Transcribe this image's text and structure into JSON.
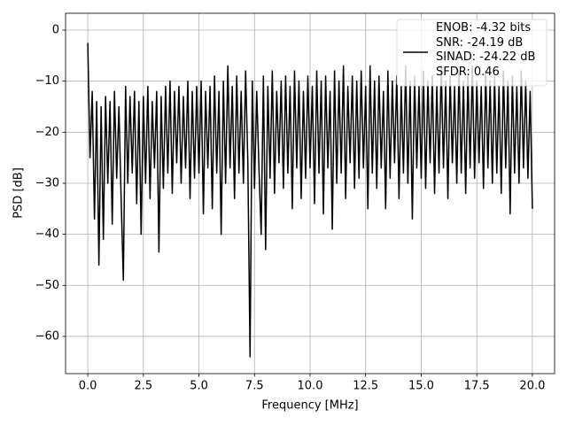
{
  "chart_data": {
    "type": "line",
    "xlabel": "Frequency [MHz]",
    "ylabel": "PSD [dB]",
    "xlim": [
      -1.0,
      21.0
    ],
    "ylim": [
      -67.3,
      3.3
    ],
    "xticks": [
      {
        "value": 0,
        "label": "0.0"
      },
      2.5,
      {
        "value": 5,
        "label": "5.0"
      },
      7.5,
      {
        "value": 10,
        "label": "10.0"
      },
      12.5,
      {
        "value": 15,
        "label": "15.0"
      },
      17.5,
      {
        "value": 20,
        "label": "20.0"
      }
    ],
    "yticks": [
      {
        "value": -60,
        "label": "−60"
      },
      {
        "value": -50,
        "label": "−50"
      },
      {
        "value": -40,
        "label": "−40"
      },
      {
        "value": -30,
        "label": "−30"
      },
      {
        "value": -20,
        "label": "−20"
      },
      {
        "value": -10,
        "label": "−10"
      },
      0
    ],
    "grid": true,
    "legend": "upper right",
    "x": [
      0.0,
      0.1,
      0.2,
      0.3,
      0.4,
      0.5,
      0.6,
      0.7,
      0.8,
      0.9,
      1.0,
      1.1,
      1.2,
      1.3,
      1.4,
      1.5,
      1.6,
      1.7,
      1.8,
      1.9,
      2.0,
      2.1,
      2.2,
      2.3,
      2.4,
      2.5,
      2.6,
      2.7,
      2.8,
      2.9,
      3.0,
      3.1,
      3.2,
      3.3,
      3.4,
      3.5,
      3.6,
      3.7,
      3.8,
      3.9,
      4.0,
      4.1,
      4.2,
      4.3,
      4.4,
      4.5,
      4.6,
      4.7,
      4.8,
      4.9,
      5.0,
      5.1,
      5.2,
      5.3,
      5.4,
      5.5,
      5.6,
      5.7,
      5.8,
      5.9,
      6.0,
      6.1,
      6.2,
      6.3,
      6.4,
      6.5,
      6.6,
      6.7,
      6.8,
      6.9,
      7.0,
      7.1,
      7.2,
      7.3,
      7.4,
      7.5,
      7.6,
      7.7,
      7.8,
      7.9,
      8.0,
      8.1,
      8.2,
      8.3,
      8.4,
      8.5,
      8.6,
      8.7,
      8.8,
      8.9,
      9.0,
      9.1,
      9.2,
      9.3,
      9.4,
      9.5,
      9.6,
      9.7,
      9.8,
      9.9,
      10.0,
      10.1,
      10.2,
      10.3,
      10.4,
      10.5,
      10.6,
      10.7,
      10.8,
      10.9,
      11.0,
      11.1,
      11.2,
      11.3,
      11.4,
      11.5,
      11.6,
      11.7,
      11.8,
      11.9,
      12.0,
      12.1,
      12.2,
      12.3,
      12.4,
      12.5,
      12.6,
      12.7,
      12.8,
      12.9,
      13.0,
      13.1,
      13.2,
      13.3,
      13.4,
      13.5,
      13.6,
      13.7,
      13.8,
      13.9,
      14.0,
      14.1,
      14.2,
      14.3,
      14.4,
      14.5,
      14.6,
      14.7,
      14.8,
      14.9,
      15.0,
      15.1,
      15.2,
      15.3,
      15.4,
      15.5,
      15.6,
      15.7,
      15.8,
      15.9,
      16.0,
      16.1,
      16.2,
      16.3,
      16.4,
      16.5,
      16.6,
      16.7,
      16.8,
      16.9,
      17.0,
      17.1,
      17.2,
      17.3,
      17.4,
      17.5,
      17.6,
      17.7,
      17.8,
      17.9,
      18.0,
      18.1,
      18.2,
      18.3,
      18.4,
      18.5,
      18.6,
      18.7,
      18.8,
      18.9,
      19.0,
      19.1,
      19.2,
      19.3,
      19.4,
      19.5,
      19.6,
      19.7,
      19.8,
      19.9,
      20.0
    ],
    "series": [
      {
        "name": "ENOB: -4.32 bits\nSNR: -24.19 dB\nSINAD: -24.22 dB\nSFDR: 0.46",
        "color": "#000000",
        "values": [
          -2.5,
          -25,
          -12,
          -37,
          -14,
          -46,
          -15,
          -41,
          -13,
          -30,
          -14,
          -38,
          -12,
          -29,
          -15,
          -33,
          -49,
          -11,
          -30,
          -13,
          -28,
          -12,
          -34,
          -14,
          -40,
          -13,
          -30,
          -11,
          -33,
          -14,
          -27,
          -12,
          -43.5,
          -13,
          -31,
          -11,
          -28,
          -10,
          -32,
          -12,
          -26,
          -11,
          -30,
          -13,
          -27,
          -10,
          -33,
          -12,
          -29,
          -11,
          -28,
          -10,
          -36,
          -12,
          -27,
          -11,
          -35,
          -9,
          -28,
          -12,
          -40,
          -10,
          -30,
          -7,
          -27,
          -11,
          -33,
          -9,
          -28,
          -12,
          -30,
          -8,
          -26,
          -64,
          -10,
          -31,
          -12,
          -27,
          -40,
          -9,
          -43,
          -11,
          -29,
          -8,
          -32,
          -12,
          -26,
          -10,
          -31,
          -9,
          -28,
          -11,
          -35,
          -8,
          -27,
          -10,
          -33,
          -12,
          -29,
          -9,
          -27,
          -11,
          -34,
          -8,
          -28,
          -10,
          -36,
          -9,
          -27,
          -12,
          -39,
          -8,
          -30,
          -10,
          -28,
          -7,
          -33,
          -11,
          -26,
          -9,
          -31,
          -10,
          -29,
          -8,
          -27,
          -11,
          -35,
          -7,
          -28,
          -10,
          -31,
          -9,
          -27,
          -12,
          -35,
          -8,
          -29,
          -10,
          -26,
          -9,
          -33,
          -11,
          -28,
          -7,
          -30,
          -10,
          -37,
          -9,
          -27,
          -11,
          -29,
          -8,
          -31,
          -10,
          -26,
          -9,
          -32,
          -11,
          -28,
          -7,
          -27,
          -10,
          -33,
          -9,
          -26,
          -11,
          -30,
          -8,
          -28,
          -10,
          -32,
          -9,
          -27,
          -7,
          -29,
          -10,
          -26,
          -11,
          -31,
          -8,
          -27,
          -10,
          -30,
          -9,
          -28,
          -11,
          -32,
          -8,
          -27,
          -10,
          -36,
          -9,
          -28,
          -11,
          -30,
          -8,
          -27,
          -10,
          -29,
          -12,
          -35
        ]
      }
    ]
  }
}
